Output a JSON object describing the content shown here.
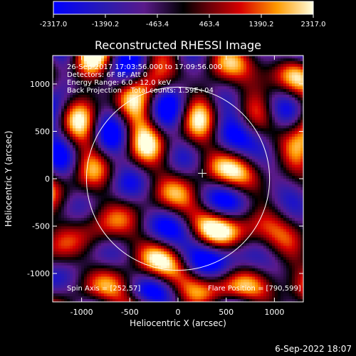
{
  "chart_data": {
    "type": "heatmap",
    "title": "Reconstructed RHESSI Image",
    "xlabel": "Heliocentric X (arcsec)",
    "ylabel": "Heliocentric Y (arcsec)",
    "xlim": [
      -1300,
      1300
    ],
    "ylim": [
      -1300,
      1300
    ],
    "x_ticks": [
      -1000,
      -500,
      0,
      500,
      1000
    ],
    "y_ticks": [
      -1000,
      -500,
      0,
      500,
      1000
    ],
    "colorbar": {
      "min": -2317.0,
      "max": 2317.0,
      "ticks": [
        -2317.0,
        -1390.2,
        -463.4,
        463.4,
        1390.2,
        2317.0
      ],
      "tick_labels": [
        "-2317.0",
        "-1390.2",
        "-463.4",
        "463.4",
        "1390.2",
        "2317.0"
      ]
    },
    "annotations": [
      "26-Sep-2017 17:03:56.000 to 17:09:56.000",
      "Detectors: 6F 8F, Att 0",
      "Energy Range: 6.0 - 12.0 keV",
      "Back Projection    Total counts: 1.59E+04"
    ],
    "footer_left": "Spin Axis = [252,57]",
    "footer_right": "Flare Position = [790,599]",
    "solar_disk_radius_arcsec": 950,
    "crosshair_xy": [
      252,
      57
    ],
    "grid": false
  },
  "timestamp": "6-Sep-2022 18:07"
}
